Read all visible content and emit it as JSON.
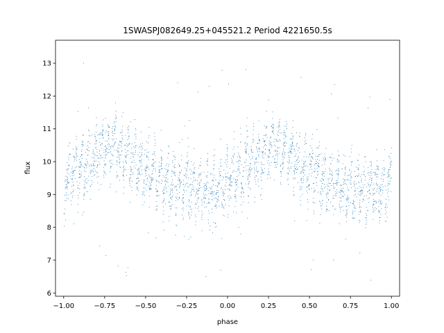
{
  "chart_data": {
    "type": "scatter",
    "title": "1SWASPJ082649.25+045521.2 Period 4221650.5s",
    "xlabel": "phase",
    "ylabel": "flux",
    "xlim": [
      -1.05,
      1.05
    ],
    "ylim": [
      5.9,
      13.7
    ],
    "xticks": [
      -1.0,
      -0.75,
      -0.5,
      -0.25,
      0.0,
      0.25,
      0.5,
      0.75,
      1.0
    ],
    "xtick_labels": [
      "−1.00",
      "−0.75",
      "−0.50",
      "−0.25",
      "0.00",
      "0.25",
      "0.50",
      "0.75",
      "1.00"
    ],
    "yticks": [
      6,
      7,
      8,
      9,
      10,
      11,
      12,
      13
    ],
    "ytick_labels": [
      "6",
      "7",
      "8",
      "9",
      "10",
      "11",
      "12",
      "13"
    ],
    "grid": false,
    "legend": "none",
    "point_color": "#1f77b4",
    "series": [
      {
        "x_range": [
          -1.0,
          1.0
        ],
        "base_profile": {
          "phase": [
            0.0,
            0.05,
            0.1,
            0.15,
            0.2,
            0.25,
            0.3,
            0.35,
            0.4,
            0.45,
            0.5,
            0.55,
            0.6,
            0.65,
            0.7,
            0.75,
            0.8,
            0.85,
            0.9,
            0.95,
            1.0
          ],
          "flux": [
            9.4,
            9.6,
            9.8,
            10.0,
            10.2,
            10.4,
            10.5,
            10.3,
            10.1,
            9.9,
            9.7,
            9.6,
            9.4,
            9.3,
            9.2,
            9.3,
            9.2,
            9.1,
            9.2,
            9.1,
            9.4
          ]
        },
        "segment_swing": 0.7,
        "scatter_sigma": 0.35,
        "outlier_range": [
          6.2,
          13.3
        ]
      }
    ]
  }
}
